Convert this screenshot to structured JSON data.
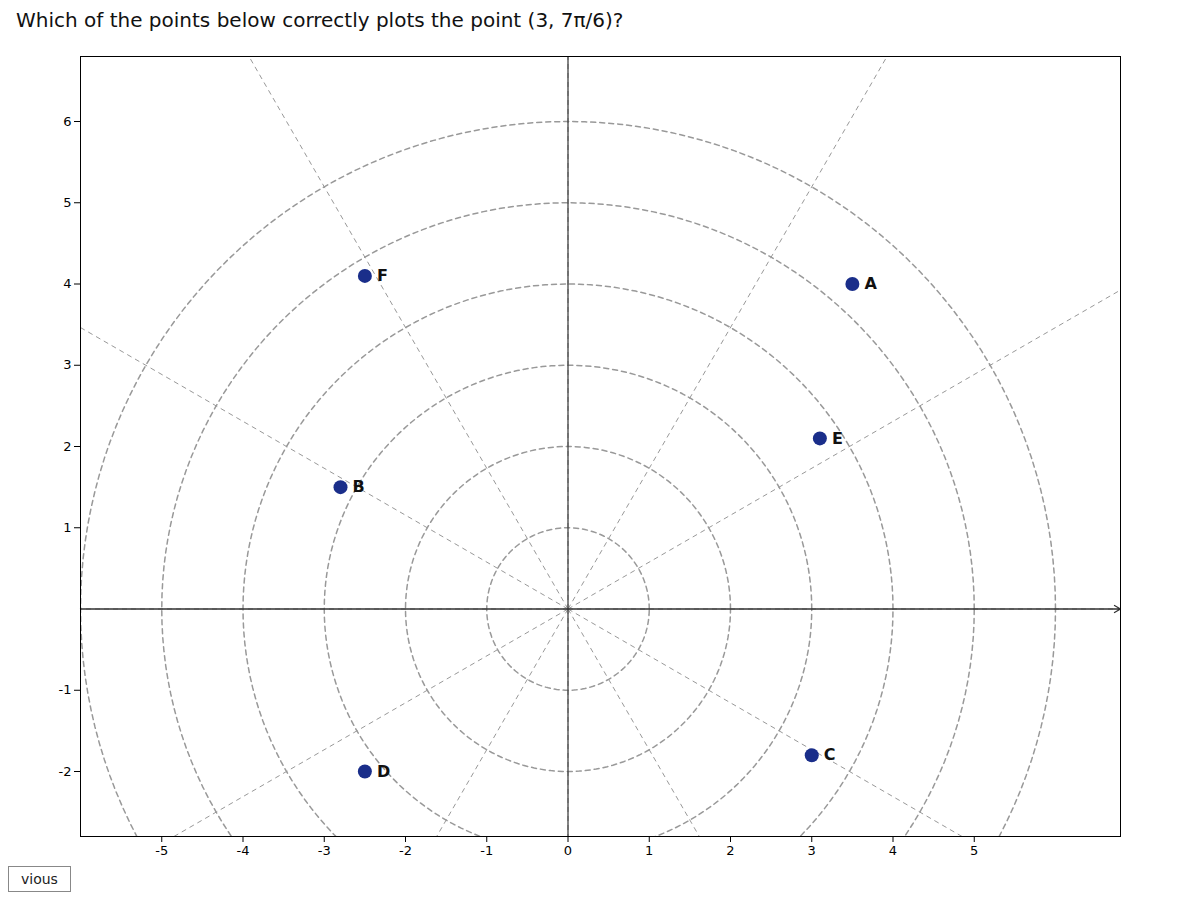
{
  "chart_data": {
    "type": "scatter",
    "title": "Which of the points below correctly plots the point (3, 7π/6)?",
    "x": [
      3.5,
      -2.8,
      3.0,
      -2.5,
      3.1,
      -2.5
    ],
    "y": [
      4.0,
      1.5,
      -1.8,
      -2.0,
      2.1,
      4.1
    ],
    "labels": [
      "A",
      "B",
      "C",
      "D",
      "E",
      "F"
    ],
    "color": "#1a2e8a",
    "xlim": [
      -6.0,
      6.8
    ],
    "ylim": [
      -2.8,
      6.8
    ],
    "xticks": [
      -5,
      -4,
      -3,
      -2,
      -1,
      0,
      1,
      2,
      3,
      4,
      5
    ],
    "yticks": [
      -2,
      -1,
      1,
      2,
      3,
      4,
      5,
      6
    ],
    "grid": true,
    "rgrid": [
      1,
      2,
      3,
      4,
      5,
      6
    ],
    "thetagrid": [
      0,
      30,
      60,
      90,
      120,
      150,
      180,
      210,
      240,
      270,
      300,
      330
    ],
    "annotations": [
      "vious"
    ]
  }
}
